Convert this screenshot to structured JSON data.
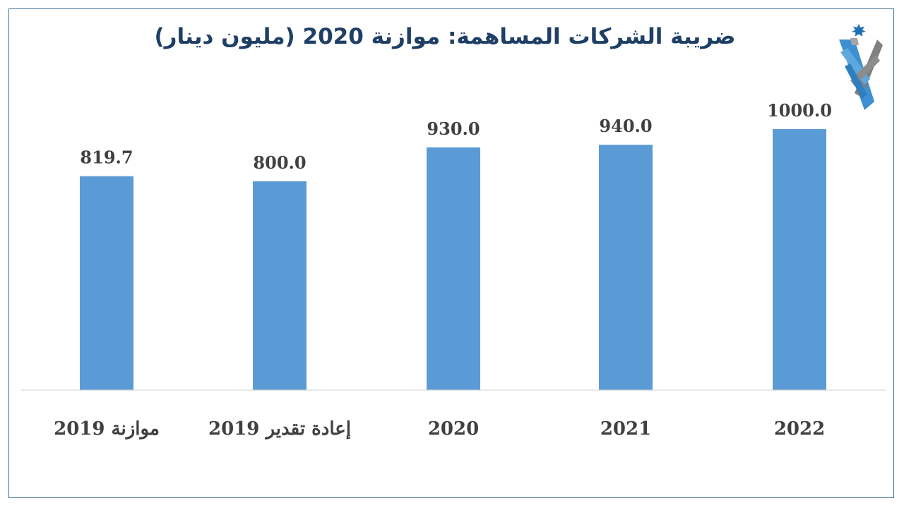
{
  "title": "ضريبة الشركات المساهمة: موازنة 2020 (مليون دينار)",
  "colors": {
    "bar": "#5b9bd5",
    "title": "#1f3f66",
    "label": "#404040",
    "axis": "#d9d9d9",
    "frame": "#3f6f95"
  },
  "logo": {
    "icon": "jordan-emblem-icon"
  },
  "chart_data": {
    "type": "bar",
    "title": "ضريبة الشركات المساهمة: موازنة 2020 (مليون دينار)",
    "categories": [
      "موازنة  2019",
      "إعادة تقدير 2019",
      "2020",
      "2021",
      "2022"
    ],
    "values": [
      819.7,
      800.0,
      930.0,
      940.0,
      1000.0
    ],
    "value_labels": [
      "819.7",
      "800.0",
      "930.0",
      "940.0",
      "1000.0"
    ],
    "ylim": [
      0,
      1000
    ],
    "grid": false,
    "legend": "none"
  }
}
